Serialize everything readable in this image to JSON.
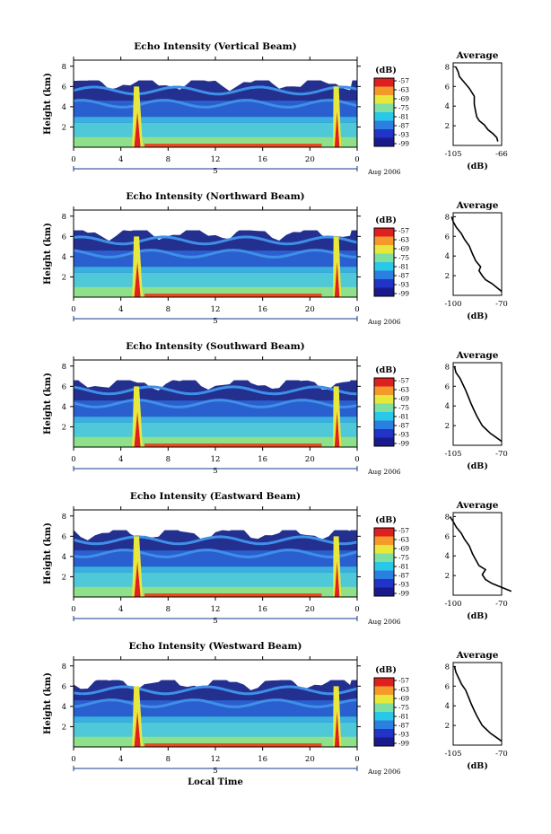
{
  "chart_data": [
    {
      "type": "heatmap",
      "title": "Echo Intensity (Vertical Beam)",
      "ylabel": "Height (km)",
      "xticks": [
        "0",
        "4",
        "8",
        "12",
        "16",
        "20",
        "0"
      ],
      "date_label": "Aug 2006",
      "day_label": "5",
      "yticks": [
        "2",
        "4",
        "6",
        "8"
      ],
      "colorbar_unit": "(dB)",
      "colorbar_ticks": [
        "-57",
        "-63",
        "-69",
        "-75",
        "-81",
        "-87",
        "-93",
        "-99"
      ],
      "profile": {
        "title": "Average",
        "xlabel": "(dB)",
        "xticks": [
          "-105",
          "-66"
        ],
        "yticks": [
          "2",
          "4",
          "6",
          "8"
        ],
        "x": [
          -69,
          -70,
          -73,
          -77,
          -80,
          -84,
          -86,
          -87,
          -88,
          -88,
          -92,
          -96,
          -100,
          -101,
          -103
        ],
        "y": [
          0.4,
          0.8,
          1.2,
          1.6,
          2.1,
          2.5,
          2.9,
          3.5,
          4.2,
          5.0,
          5.8,
          6.4,
          7.0,
          7.5,
          8.0
        ]
      }
    },
    {
      "type": "heatmap",
      "title": "Echo Intensity (Northward Beam)",
      "ylabel": "Height (km)",
      "xticks": [
        "0",
        "4",
        "8",
        "12",
        "16",
        "20",
        "0"
      ],
      "date_label": "Aug 2006",
      "day_label": "5",
      "yticks": [
        "2",
        "4",
        "6",
        "8"
      ],
      "colorbar_unit": "(dB)",
      "colorbar_ticks": [
        "-57",
        "-63",
        "-69",
        "-75",
        "-81",
        "-87",
        "-93",
        "-99"
      ],
      "profile": {
        "title": "Average",
        "xlabel": "(dB)",
        "xticks": [
          "-100",
          "-70"
        ],
        "yticks": [
          "2",
          "4",
          "6",
          "8"
        ],
        "x": [
          -70,
          -73,
          -76,
          -80,
          -82,
          -84,
          -83,
          -86,
          -88,
          -90,
          -93,
          -95,
          -98,
          -100,
          -101
        ],
        "y": [
          0.4,
          0.8,
          1.2,
          1.6,
          2.0,
          2.5,
          2.9,
          3.5,
          4.2,
          5.0,
          5.7,
          6.3,
          6.9,
          7.5,
          8.0
        ]
      }
    },
    {
      "type": "heatmap",
      "title": "Echo Intensity (Southward Beam)",
      "ylabel": "Height (km)",
      "xticks": [
        "0",
        "4",
        "8",
        "12",
        "16",
        "20",
        "0"
      ],
      "date_label": "Aug 2006",
      "day_label": "5",
      "yticks": [
        "2",
        "4",
        "6",
        "8"
      ],
      "colorbar_unit": "(dB)",
      "colorbar_ticks": [
        "-57",
        "-63",
        "-69",
        "-75",
        "-81",
        "-87",
        "-93",
        "-99"
      ],
      "profile": {
        "title": "Average",
        "xlabel": "(dB)",
        "xticks": [
          "-105",
          "-70"
        ],
        "yticks": [
          "2",
          "4",
          "6",
          "8"
        ],
        "x": [
          -70,
          -74,
          -78,
          -81,
          -84,
          -86,
          -88,
          -90,
          -92,
          -94,
          -96,
          -98,
          -100,
          -103,
          -104
        ],
        "y": [
          0.4,
          0.8,
          1.2,
          1.6,
          2.0,
          2.5,
          3.0,
          3.6,
          4.2,
          4.9,
          5.6,
          6.2,
          6.8,
          7.4,
          8.0
        ]
      }
    },
    {
      "type": "heatmap",
      "title": "Echo Intensity (Eastward Beam)",
      "ylabel": "Height (km)",
      "xticks": [
        "0",
        "4",
        "8",
        "12",
        "16",
        "20",
        "0"
      ],
      "date_label": "Aug 2006",
      "day_label": "5",
      "yticks": [
        "2",
        "4",
        "6",
        "8"
      ],
      "colorbar_unit": "(dB)",
      "colorbar_ticks": [
        "-57",
        "-63",
        "-69",
        "-75",
        "-81",
        "-87",
        "-93",
        "-99"
      ],
      "profile": {
        "title": "Average",
        "xlabel": "(dB)",
        "xticks": [
          "-100",
          "-70"
        ],
        "yticks": [
          "2",
          "4",
          "6",
          "8"
        ],
        "x": [
          -64,
          -70,
          -76,
          -80,
          -82,
          -80,
          -84,
          -86,
          -88,
          -90,
          -93,
          -95,
          -98,
          -100,
          -102
        ],
        "y": [
          0.4,
          0.8,
          1.2,
          1.6,
          2.1,
          2.6,
          3.0,
          3.6,
          4.2,
          5.0,
          5.7,
          6.3,
          6.9,
          7.5,
          8.0
        ]
      }
    },
    {
      "type": "heatmap",
      "title": "Echo Intensity (Westward Beam)",
      "ylabel": "Height (km)",
      "xticks": [
        "0",
        "4",
        "8",
        "12",
        "16",
        "20",
        "0"
      ],
      "date_label": "Aug 2006",
      "day_label": "5",
      "yticks": [
        "2",
        "4",
        "6",
        "8"
      ],
      "colorbar_unit": "(dB)",
      "colorbar_ticks": [
        "-57",
        "-63",
        "-69",
        "-75",
        "-81",
        "-87",
        "-93",
        "-99"
      ],
      "xlabel": "Local Time",
      "profile": {
        "title": "Average",
        "xlabel": "(dB)",
        "xticks": [
          "-105",
          "-70"
        ],
        "yticks": [
          "2",
          "4",
          "6",
          "8"
        ],
        "x": [
          -70,
          -74,
          -78,
          -81,
          -84,
          -86,
          -88,
          -90,
          -92,
          -94,
          -96,
          -99,
          -101,
          -103,
          -104
        ],
        "y": [
          0.4,
          0.8,
          1.2,
          1.6,
          2.0,
          2.5,
          3.0,
          3.6,
          4.2,
          4.9,
          5.6,
          6.2,
          6.8,
          7.4,
          8.0
        ]
      }
    }
  ]
}
